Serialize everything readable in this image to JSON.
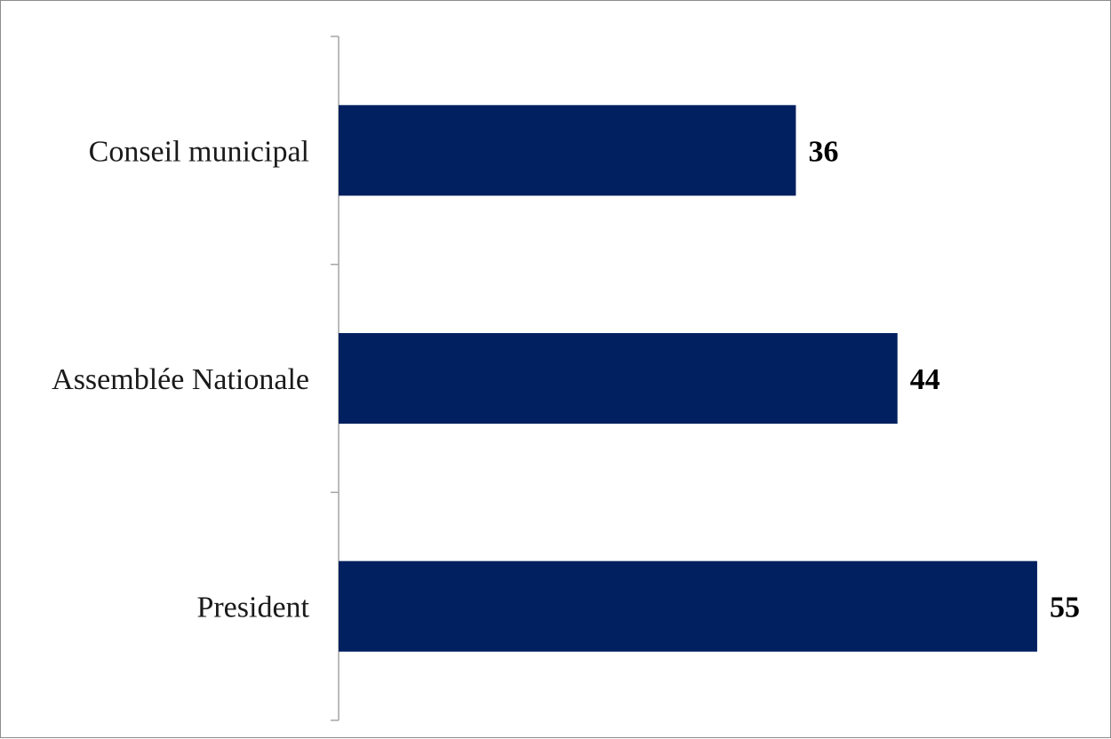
{
  "chart_data": {
    "type": "bar",
    "orientation": "horizontal",
    "categories": [
      "Conseil municipal",
      "Assemblée Nationale",
      "President"
    ],
    "values": [
      36,
      44,
      55
    ],
    "data_labels": [
      "36",
      "44",
      "55"
    ],
    "title": "",
    "xlabel": "",
    "ylabel": "",
    "xlim": [
      0,
      60
    ],
    "grid": false,
    "legend": "none",
    "bar_color": "#002060"
  }
}
